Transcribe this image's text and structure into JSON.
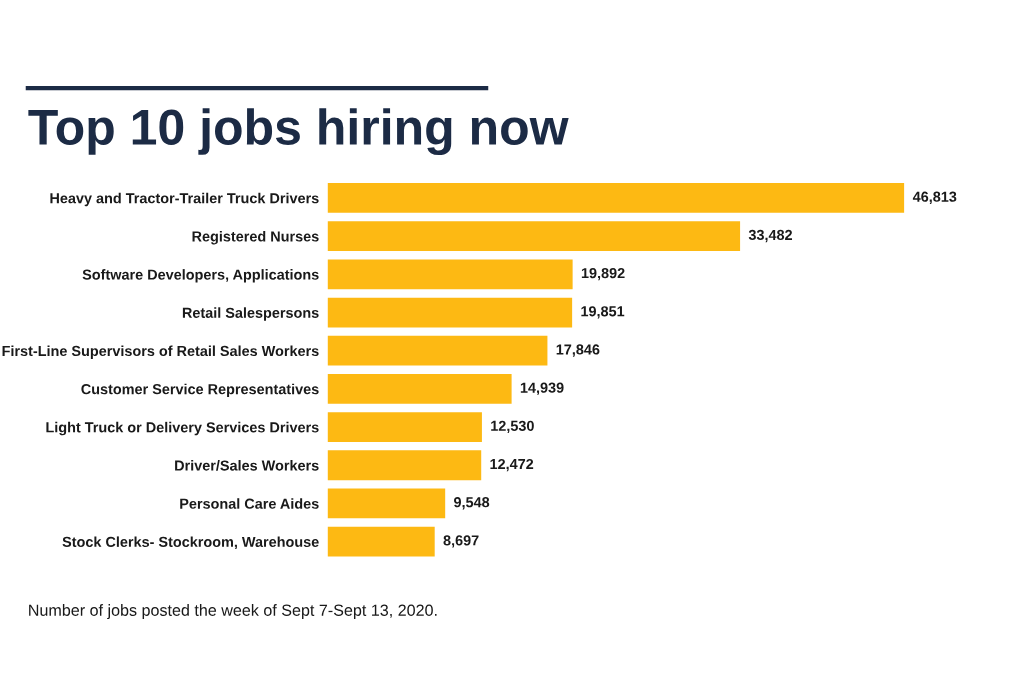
{
  "chart_data": {
    "type": "bar",
    "orientation": "horizontal",
    "title": "Top 10 jobs hiring now",
    "categories": [
      "Heavy and Tractor-Trailer Truck Drivers",
      "Registered Nurses",
      "Software Developers, Applications",
      "Retail Salespersons",
      "First-Line Supervisors of Retail Sales Workers",
      "Customer Service Representatives",
      "Light Truck or Delivery Services Drivers",
      "Driver/Sales Workers",
      "Personal Care Aides",
      "Stock Clerks- Stockroom, Warehouse"
    ],
    "values": [
      46813,
      33482,
      19892,
      19851,
      17846,
      14939,
      12530,
      12472,
      9548,
      8697
    ],
    "value_labels": [
      "46,813",
      "33,482",
      "19,892",
      "19,851",
      "17,846",
      "14,939",
      "12,530",
      "12,472",
      "9,548",
      "8,697"
    ],
    "color": "#fdb913",
    "tick_labels": "y",
    "annotations": [
      "Number of jobs posted the week of Sept 7-Sept 13, 2020."
    ]
  }
}
